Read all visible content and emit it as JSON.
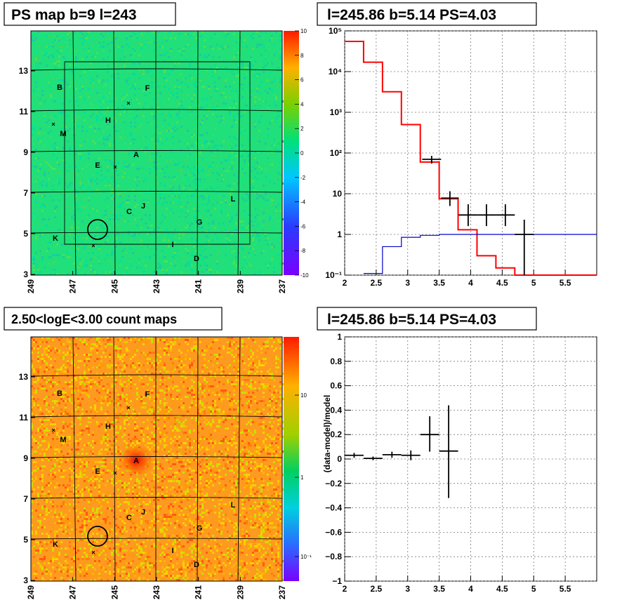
{
  "titles": {
    "top_left": "PS map b=9 l=243",
    "top_right": "l=245.86 b=5.14 PS=4.03",
    "bottom_left": "2.50<logE<3.00 count maps",
    "bottom_right": "l=245.86 b=5.14 PS=4.03"
  },
  "maps": {
    "x_ticks": [
      "249",
      "247",
      "245",
      "243",
      "241",
      "239",
      "237"
    ],
    "y_ticks": [
      "13",
      "11",
      "9",
      "7",
      "5",
      "3"
    ],
    "sources": [
      "B",
      "F",
      "H",
      "M",
      "E",
      "A",
      "J",
      "C",
      "L",
      "G",
      "K",
      "I",
      "D"
    ],
    "ps_colorbar_ticks": [
      "10",
      "8",
      "6",
      "4",
      "2",
      "0",
      "-2",
      "-4",
      "-6",
      "-8",
      "-10"
    ],
    "count_colorbar_ticks": [
      "10",
      "1",
      "10⁻¹"
    ]
  },
  "chart_data": [
    {
      "type": "line",
      "name": "spectrum",
      "xlim": [
        2,
        6
      ],
      "ylim": [
        0.1,
        100000
      ],
      "log_y": true,
      "x_ticks": [
        "2",
        "2.5",
        "3",
        "3.5",
        "4",
        "4.5",
        "5",
        "5.5"
      ],
      "y_ticks": [
        "10⁵",
        "10⁴",
        "10³",
        "10²",
        "10",
        "1",
        "10⁻¹"
      ],
      "grid": true,
      "series": [
        {
          "color": "#000000",
          "points": [
            {
              "x0": 2.0,
              "x1": 2.3,
              "y": 55000
            },
            {
              "x0": 2.3,
              "x1": 2.6,
              "y": 17000
            },
            {
              "x0": 2.6,
              "x1": 2.9,
              "y": 3200
            },
            {
              "x0": 2.9,
              "x1": 3.2,
              "y": 500
            },
            {
              "x0": 3.2,
              "x1": 3.5,
              "y": 60
            },
            {
              "x0": 3.5,
              "x1": 3.8,
              "y": 7.5
            },
            {
              "x0": 3.8,
              "x1": 4.1,
              "y": 1.3
            },
            {
              "x0": 4.1,
              "x1": 4.4,
              "y": 0.3
            },
            {
              "x0": 4.4,
              "x1": 4.7,
              "y": 0.15
            }
          ]
        },
        {
          "color": "#ff0000",
          "points": [
            {
              "x0": 2.0,
              "x1": 2.3,
              "y": 55000
            },
            {
              "x0": 2.3,
              "x1": 2.6,
              "y": 17000
            },
            {
              "x0": 2.6,
              "x1": 2.9,
              "y": 3200
            },
            {
              "x0": 2.9,
              "x1": 3.2,
              "y": 500
            },
            {
              "x0": 3.2,
              "x1": 3.5,
              "y": 60
            },
            {
              "x0": 3.5,
              "x1": 3.8,
              "y": 7.5
            },
            {
              "x0": 3.8,
              "x1": 4.1,
              "y": 1.3
            },
            {
              "x0": 4.1,
              "x1": 4.4,
              "y": 0.3
            },
            {
              "x0": 4.4,
              "x1": 4.7,
              "y": 0.15
            },
            {
              "x0": 4.7,
              "x1": 6.0,
              "y": 0.1
            }
          ]
        },
        {
          "color": "#0000cc",
          "points": [
            {
              "x0": 2.3,
              "x1": 2.6,
              "y": 0.11
            },
            {
              "x0": 2.6,
              "x1": 2.9,
              "y": 0.5
            },
            {
              "x0": 2.9,
              "x1": 3.2,
              "y": 0.85
            },
            {
              "x0": 3.2,
              "x1": 3.5,
              "y": 0.95
            },
            {
              "x0": 3.5,
              "x1": 6.0,
              "y": 1.0
            }
          ]
        }
      ],
      "data_points": [
        {
          "x": 3.38,
          "y": 70,
          "xlo": 3.23,
          "xhi": 3.53,
          "ylo": 55,
          "yhi": 85
        },
        {
          "x": 3.67,
          "y": 7.8,
          "xlo": 3.53,
          "xhi": 3.81,
          "ylo": 5.0,
          "yhi": 11.5
        },
        {
          "x": 3.96,
          "y": 3.0,
          "xlo": 3.81,
          "xhi": 4.11,
          "ylo": 1.6,
          "yhi": 5.5
        },
        {
          "x": 4.25,
          "y": 3.0,
          "xlo": 4.11,
          "xhi": 4.4,
          "ylo": 1.6,
          "yhi": 5.5
        },
        {
          "x": 4.55,
          "y": 3.0,
          "xlo": 4.4,
          "xhi": 4.7,
          "ylo": 1.6,
          "yhi": 5.5
        },
        {
          "x": 4.85,
          "y": 1.0,
          "xlo": 4.7,
          "xhi": 5.0,
          "ylo": 0.1,
          "yhi": 2.3
        }
      ]
    },
    {
      "type": "scatter",
      "name": "residuals",
      "ylabel": "(data-model)/model",
      "xlim": [
        2,
        6
      ],
      "ylim": [
        -1,
        1
      ],
      "x_ticks": [
        "2",
        "2.5",
        "3",
        "3.5",
        "4",
        "4.5",
        "5",
        "5.5"
      ],
      "y_ticks": [
        "1",
        "0.8",
        "0.6",
        "0.4",
        "0.2",
        "0",
        "−0.2",
        "−0.4",
        "−0.6",
        "−0.8",
        "−1"
      ],
      "grid": true,
      "data_points": [
        {
          "x": 2.15,
          "y": 0.03,
          "xlo": 2.0,
          "xhi": 2.3,
          "ylo": 0.01,
          "yhi": 0.05
        },
        {
          "x": 2.45,
          "y": 0.005,
          "xlo": 2.3,
          "xhi": 2.6,
          "ylo": -0.01,
          "yhi": 0.02
        },
        {
          "x": 2.75,
          "y": 0.035,
          "xlo": 2.6,
          "xhi": 2.9,
          "ylo": 0.01,
          "yhi": 0.06
        },
        {
          "x": 3.05,
          "y": 0.03,
          "xlo": 2.9,
          "xhi": 3.2,
          "ylo": -0.01,
          "yhi": 0.07
        },
        {
          "x": 3.35,
          "y": 0.2,
          "xlo": 3.2,
          "xhi": 3.5,
          "ylo": 0.06,
          "yhi": 0.35
        },
        {
          "x": 3.65,
          "y": 0.065,
          "xlo": 3.5,
          "xhi": 3.8,
          "ylo": -0.32,
          "yhi": 0.44
        }
      ]
    }
  ]
}
